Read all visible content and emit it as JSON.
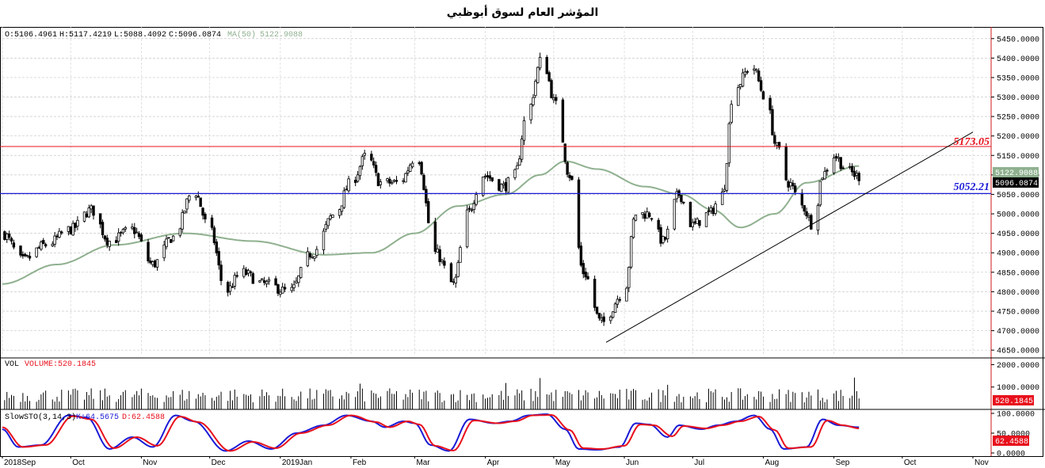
{
  "title": "المؤشر العام لسوق أبوظبي",
  "ohlc_readout": {
    "open": "O:5106.4961",
    "high": "H:5117.4219",
    "low": "L:5088.4092",
    "close": "C:5096.0874",
    "ma_label": "MA(50)",
    "ma_value": "5122.9088"
  },
  "volume_readout": {
    "label": "VOL",
    "value": "VOLUME:520.1845"
  },
  "stoch_readout": {
    "label": "SlowSTO(3,14,3)",
    "k": "K:64.5675",
    "d": "D:62.4588"
  },
  "levels": {
    "resistance": {
      "label": "5173.05",
      "value": 5173.05,
      "color": "#e8101c"
    },
    "support": {
      "label": "5052.21",
      "value": 5052.21,
      "color": "#1a1ad6"
    }
  },
  "price_badges": {
    "ma": {
      "text": "5122.9088",
      "color": "#8fb08f"
    },
    "close": {
      "text": "5096.0874",
      "color": "#000000"
    },
    "volume": {
      "text": "520.1845",
      "color": "#e8101c"
    },
    "stoch": {
      "text": "62.4588",
      "color": "#e8101c"
    }
  },
  "colors": {
    "ma_line": "#8fb08f",
    "k_line": "#1a1ad6",
    "d_line": "#e8101c",
    "axis_frame": "#d01818",
    "trendline": "#000000"
  },
  "chart_data": [
    {
      "type": "candlestick",
      "title": "المؤشر العام لسوق أبوظبي",
      "ylim": [
        4630,
        5480
      ],
      "y_ticks": [
        "5450.0000",
        "5400.0000",
        "5350.0000",
        "5300.0000",
        "5250.0000",
        "5200.0000",
        "5150.0000",
        "5100.0000",
        "5050.0000",
        "5000.0000",
        "4950.0000",
        "4900.0000",
        "4850.0000",
        "4800.0000",
        "4750.0000",
        "4700.0000",
        "4650.0000"
      ],
      "x_labels": [
        "2018Sep",
        "Oct",
        "Nov",
        "Dec",
        "2019Jan",
        "Feb",
        "Mar",
        "Apr",
        "May",
        "Jun",
        "Jul",
        "Aug",
        "Sep",
        "Oct",
        "Nov"
      ],
      "close_anchors": [
        [
          "2018-09-01",
          4950
        ],
        [
          "2018-09-10",
          4880
        ],
        [
          "2018-09-20",
          4920
        ],
        [
          "2018-10-01",
          4960
        ],
        [
          "2018-10-10",
          5010
        ],
        [
          "2018-10-18",
          4930
        ],
        [
          "2018-10-28",
          4960
        ],
        [
          "2018-11-06",
          4870
        ],
        [
          "2018-11-15",
          4940
        ],
        [
          "2018-11-24",
          5060
        ],
        [
          "2018-12-01",
          4960
        ],
        [
          "2018-12-08",
          4800
        ],
        [
          "2018-12-15",
          4850
        ],
        [
          "2018-12-25",
          4820
        ],
        [
          "2019-01-05",
          4800
        ],
        [
          "2019-01-15",
          4900
        ],
        [
          "2019-01-25",
          5000
        ],
        [
          "2019-02-01",
          5080
        ],
        [
          "2019-02-08",
          5150
        ],
        [
          "2019-02-14",
          5080
        ],
        [
          "2019-02-22",
          5080
        ],
        [
          "2019-03-02",
          5150
        ],
        [
          "2019-03-10",
          4900
        ],
        [
          "2019-03-18",
          4820
        ],
        [
          "2019-03-24",
          5000
        ],
        [
          "2019-03-31",
          5100
        ],
        [
          "2019-04-09",
          5070
        ],
        [
          "2019-04-14",
          5100
        ],
        [
          "2019-04-19",
          5250
        ],
        [
          "2019-04-26",
          5400
        ],
        [
          "2019-05-02",
          5280
        ],
        [
          "2019-05-08",
          5100
        ],
        [
          "2019-05-14",
          4850
        ],
        [
          "2019-05-22",
          4720
        ],
        [
          "2019-06-01",
          4800
        ],
        [
          "2019-06-06",
          5000
        ],
        [
          "2019-06-12",
          5000
        ],
        [
          "2019-06-18",
          4930
        ],
        [
          "2019-06-25",
          5050
        ],
        [
          "2019-07-01",
          4970
        ],
        [
          "2019-07-08",
          5000
        ],
        [
          "2019-07-14",
          5050
        ],
        [
          "2019-07-19",
          5320
        ],
        [
          "2019-07-27",
          5380
        ],
        [
          "2019-08-02",
          5300
        ],
        [
          "2019-08-07",
          5170
        ],
        [
          "2019-08-12",
          5080
        ],
        [
          "2019-08-18",
          5020
        ],
        [
          "2019-08-23",
          4970
        ],
        [
          "2019-08-27",
          5100
        ],
        [
          "2019-09-01",
          5150
        ],
        [
          "2019-09-07",
          5110
        ],
        [
          "2019-09-12",
          5096
        ]
      ],
      "moving_average": {
        "name": "MA(50)",
        "last": 5122.9088,
        "anchors": [
          [
            "2018-09-01",
            4820
          ],
          [
            "2018-09-25",
            4870
          ],
          [
            "2018-10-20",
            4920
          ],
          [
            "2018-11-20",
            4950
          ],
          [
            "2018-12-20",
            4930
          ],
          [
            "2019-01-20",
            4895
          ],
          [
            "2019-02-10",
            4900
          ],
          [
            "2019-03-01",
            4950
          ],
          [
            "2019-03-20",
            5020
          ],
          [
            "2019-04-10",
            5050
          ],
          [
            "2019-04-25",
            5100
          ],
          [
            "2019-05-06",
            5135
          ],
          [
            "2019-05-20",
            5115
          ],
          [
            "2019-06-10",
            5070
          ],
          [
            "2019-06-26",
            5050
          ],
          [
            "2019-07-10",
            5010
          ],
          [
            "2019-07-22",
            4965
          ],
          [
            "2019-08-06",
            5000
          ],
          [
            "2019-08-20",
            5080
          ],
          [
            "2019-09-12",
            5123
          ]
        ]
      },
      "trendline": {
        "from": [
          "2019-05-24",
          4670
        ],
        "to": [
          "2019-11-01",
          5210
        ]
      },
      "levels": [
        5173.05,
        5052.21
      ]
    },
    {
      "type": "bar",
      "name": "VOL",
      "ylim": [
        0,
        2300
      ],
      "y_ticks": [
        "2000.0000",
        "1000.0000"
      ],
      "last": 520.1845,
      "typical": 700,
      "spikes": [
        [
          "2018-12-07",
          1920
        ],
        [
          "2019-09-10",
          1420
        ],
        [
          "2019-07-20",
          1500
        ],
        [
          "2019-04-25",
          1400
        ],
        [
          "2019-04-10",
          1180
        ],
        [
          "2019-02-05",
          1150
        ],
        [
          "2019-06-20",
          1100
        ]
      ]
    },
    {
      "type": "line",
      "name": "SlowSTO(3,14,3)",
      "ylim": [
        0,
        110
      ],
      "y_ticks": [
        "100.0000",
        "50.0000",
        "0.0000"
      ],
      "series": [
        {
          "name": "K",
          "last": 64.5675,
          "anchors": [
            [
              "2018-09-01",
              60
            ],
            [
              "2018-09-08",
              15
            ],
            [
              "2018-09-18",
              20
            ],
            [
              "2018-09-30",
              95
            ],
            [
              "2018-10-08",
              90
            ],
            [
              "2018-10-18",
              10
            ],
            [
              "2018-10-28",
              40
            ],
            [
              "2018-11-06",
              15
            ],
            [
              "2018-11-16",
              95
            ],
            [
              "2018-11-24",
              80
            ],
            [
              "2018-12-08",
              5
            ],
            [
              "2018-12-18",
              30
            ],
            [
              "2018-12-28",
              10
            ],
            [
              "2019-01-08",
              50
            ],
            [
              "2019-01-20",
              70
            ],
            [
              "2019-01-30",
              95
            ],
            [
              "2019-02-10",
              80
            ],
            [
              "2019-02-16",
              65
            ],
            [
              "2019-02-24",
              80
            ],
            [
              "2019-03-01",
              75
            ],
            [
              "2019-03-08",
              20
            ],
            [
              "2019-03-16",
              5
            ],
            [
              "2019-03-25",
              85
            ],
            [
              "2019-04-05",
              75
            ],
            [
              "2019-04-12",
              80
            ],
            [
              "2019-04-20",
              95
            ],
            [
              "2019-04-28",
              98
            ],
            [
              "2019-05-06",
              60
            ],
            [
              "2019-05-12",
              10
            ],
            [
              "2019-05-20",
              8
            ],
            [
              "2019-05-30",
              15
            ],
            [
              "2019-06-06",
              75
            ],
            [
              "2019-06-12",
              72
            ],
            [
              "2019-06-20",
              40
            ],
            [
              "2019-06-25",
              70
            ],
            [
              "2019-07-05",
              60
            ],
            [
              "2019-07-12",
              70
            ],
            [
              "2019-07-20",
              80
            ],
            [
              "2019-07-28",
              95
            ],
            [
              "2019-08-04",
              60
            ],
            [
              "2019-08-10",
              10
            ],
            [
              "2019-08-20",
              15
            ],
            [
              "2019-08-27",
              85
            ],
            [
              "2019-09-03",
              70
            ],
            [
              "2019-09-12",
              65
            ]
          ]
        },
        {
          "name": "D",
          "last": 62.4588,
          "anchors": [
            [
              "2018-09-01",
              65
            ],
            [
              "2018-09-10",
              15
            ],
            [
              "2018-09-20",
              20
            ],
            [
              "2018-10-02",
              93
            ],
            [
              "2018-10-10",
              85
            ],
            [
              "2018-10-20",
              12
            ],
            [
              "2018-10-30",
              40
            ],
            [
              "2018-11-08",
              18
            ],
            [
              "2018-11-18",
              92
            ],
            [
              "2018-11-26",
              78
            ],
            [
              "2018-12-10",
              5
            ],
            [
              "2018-12-20",
              28
            ],
            [
              "2018-12-30",
              12
            ],
            [
              "2019-01-10",
              50
            ],
            [
              "2019-01-22",
              70
            ],
            [
              "2019-02-01",
              95
            ],
            [
              "2019-02-12",
              78
            ],
            [
              "2019-02-18",
              65
            ],
            [
              "2019-02-26",
              80
            ],
            [
              "2019-03-03",
              72
            ],
            [
              "2019-03-10",
              18
            ],
            [
              "2019-03-18",
              6
            ],
            [
              "2019-03-27",
              82
            ],
            [
              "2019-04-07",
              75
            ],
            [
              "2019-04-14",
              80
            ],
            [
              "2019-04-22",
              95
            ],
            [
              "2019-04-30",
              96
            ],
            [
              "2019-05-08",
              58
            ],
            [
              "2019-05-14",
              12
            ],
            [
              "2019-05-22",
              10
            ],
            [
              "2019-06-01",
              18
            ],
            [
              "2019-06-08",
              72
            ],
            [
              "2019-06-14",
              70
            ],
            [
              "2019-06-22",
              42
            ],
            [
              "2019-06-27",
              68
            ],
            [
              "2019-07-07",
              62
            ],
            [
              "2019-07-14",
              70
            ],
            [
              "2019-07-22",
              80
            ],
            [
              "2019-07-30",
              92
            ],
            [
              "2019-08-06",
              58
            ],
            [
              "2019-08-12",
              12
            ],
            [
              "2019-08-22",
              15
            ],
            [
              "2019-08-29",
              82
            ],
            [
              "2019-09-05",
              70
            ],
            [
              "2019-09-12",
              62
            ]
          ]
        }
      ]
    }
  ]
}
